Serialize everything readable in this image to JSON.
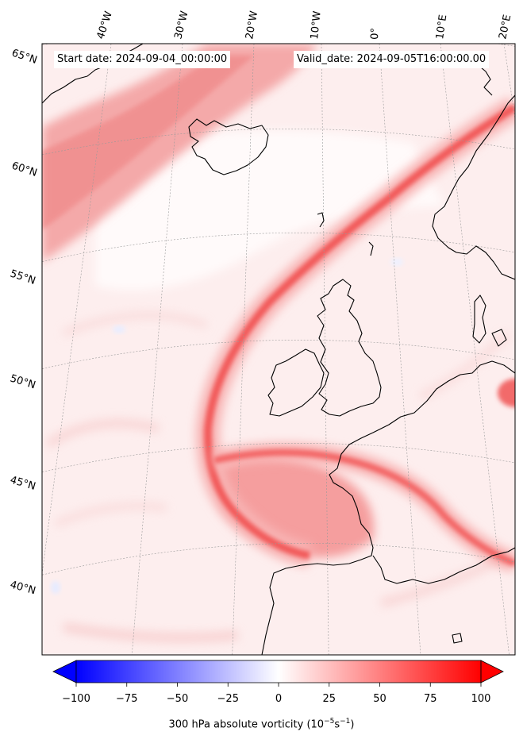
{
  "header": {
    "start_date": "Start date: 2024-09-04_00:00:00",
    "valid_date": "Valid_date: 2024-09-05T16:00:00.00"
  },
  "map": {
    "projection": "polar-stereographic",
    "lon_ticks": [
      "40°W",
      "30°W",
      "20°W",
      "10°W",
      "0°",
      "10°E",
      "20°E"
    ],
    "lat_ticks": [
      "65°N",
      "60°N",
      "55°N",
      "50°N",
      "45°N",
      "40°N"
    ],
    "gridlines": true,
    "coastline_color": "#000000"
  },
  "colorbar": {
    "cmap": "bwr",
    "min": -100,
    "max": 100,
    "extend": "both",
    "tick_labels": [
      "−100",
      "−75",
      "−50",
      "−25",
      "0",
      "25",
      "50",
      "75",
      "100"
    ],
    "label_prefix": "300 hPa absolute vorticity (10",
    "label_exp1": "−5",
    "label_mid": "s",
    "label_exp2": "−1",
    "label_suffix": ")",
    "color_low": "#0000ff",
    "color_mid": "#ffffff",
    "color_high": "#ff0000"
  }
}
